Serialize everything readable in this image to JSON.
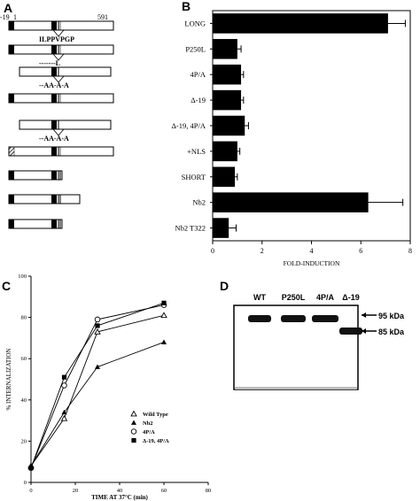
{
  "panels": {
    "A": "A",
    "B": "B",
    "C": "C",
    "D": "D"
  },
  "schematic": {
    "start_label": "-19",
    "one_label": "1",
    "end_label": "591",
    "sequence_label": "ILPPVPGP",
    "constructs": [
      {
        "mutation": ""
      },
      {
        "mutation": "-------L"
      },
      {
        "mutation": "--AA-A-A"
      },
      {
        "mutation": ""
      },
      {
        "mutation": "--AA-A-A"
      },
      {
        "mutation": ""
      },
      {
        "mutation": ""
      },
      {
        "mutation": ""
      },
      {
        "mutation": ""
      }
    ]
  },
  "chart_data": [
    {
      "panel": "B",
      "type": "bar",
      "orientation": "horizontal",
      "categories": [
        "LONG",
        "P250L",
        "4P/A",
        "Δ-19",
        "Δ-19, 4P/A",
        "+NLS",
        "SHORT",
        "Nb2",
        "Nb2 T322"
      ],
      "values": [
        7.1,
        1.0,
        1.15,
        1.15,
        1.3,
        1.0,
        0.9,
        6.3,
        0.65
      ],
      "errors": [
        0.7,
        0.15,
        0.1,
        0.1,
        0.15,
        0.1,
        0.1,
        1.4,
        0.3
      ],
      "xlabel": "FOLD-INDUCTION",
      "xlim": [
        0,
        8
      ],
      "xticks": [
        0,
        2,
        4,
        6,
        8
      ],
      "bar_color": "#000000"
    },
    {
      "panel": "C",
      "type": "line",
      "xlabel": "TIME AT 37°C (min)",
      "ylabel": "% INTERNALIZATION",
      "xlim": [
        0,
        80
      ],
      "ylim": [
        0,
        100
      ],
      "xticks": [
        0,
        20,
        40,
        60,
        80
      ],
      "yticks": [
        0,
        20,
        40,
        60,
        80,
        100
      ],
      "legend_position": "bottom-right",
      "x": [
        0,
        15,
        30,
        60
      ],
      "series": [
        {
          "name": "Wild Type",
          "marker": "open-triangle",
          "values": [
            8,
            31,
            73,
            81
          ]
        },
        {
          "name": "Nb2",
          "marker": "filled-triangle",
          "values": [
            8,
            34,
            56,
            68
          ]
        },
        {
          "name": "4P/A",
          "marker": "open-circle",
          "values": [
            7,
            47,
            79,
            86
          ]
        },
        {
          "name": "Δ-19, 4P/A",
          "marker": "filled-square",
          "values": [
            7,
            51,
            76,
            87
          ]
        }
      ]
    }
  ],
  "blot": {
    "lanes": [
      "WT",
      "P250L",
      "4P/A",
      "Δ-19"
    ],
    "markers": [
      "95 kDa",
      "85 kDa"
    ]
  }
}
